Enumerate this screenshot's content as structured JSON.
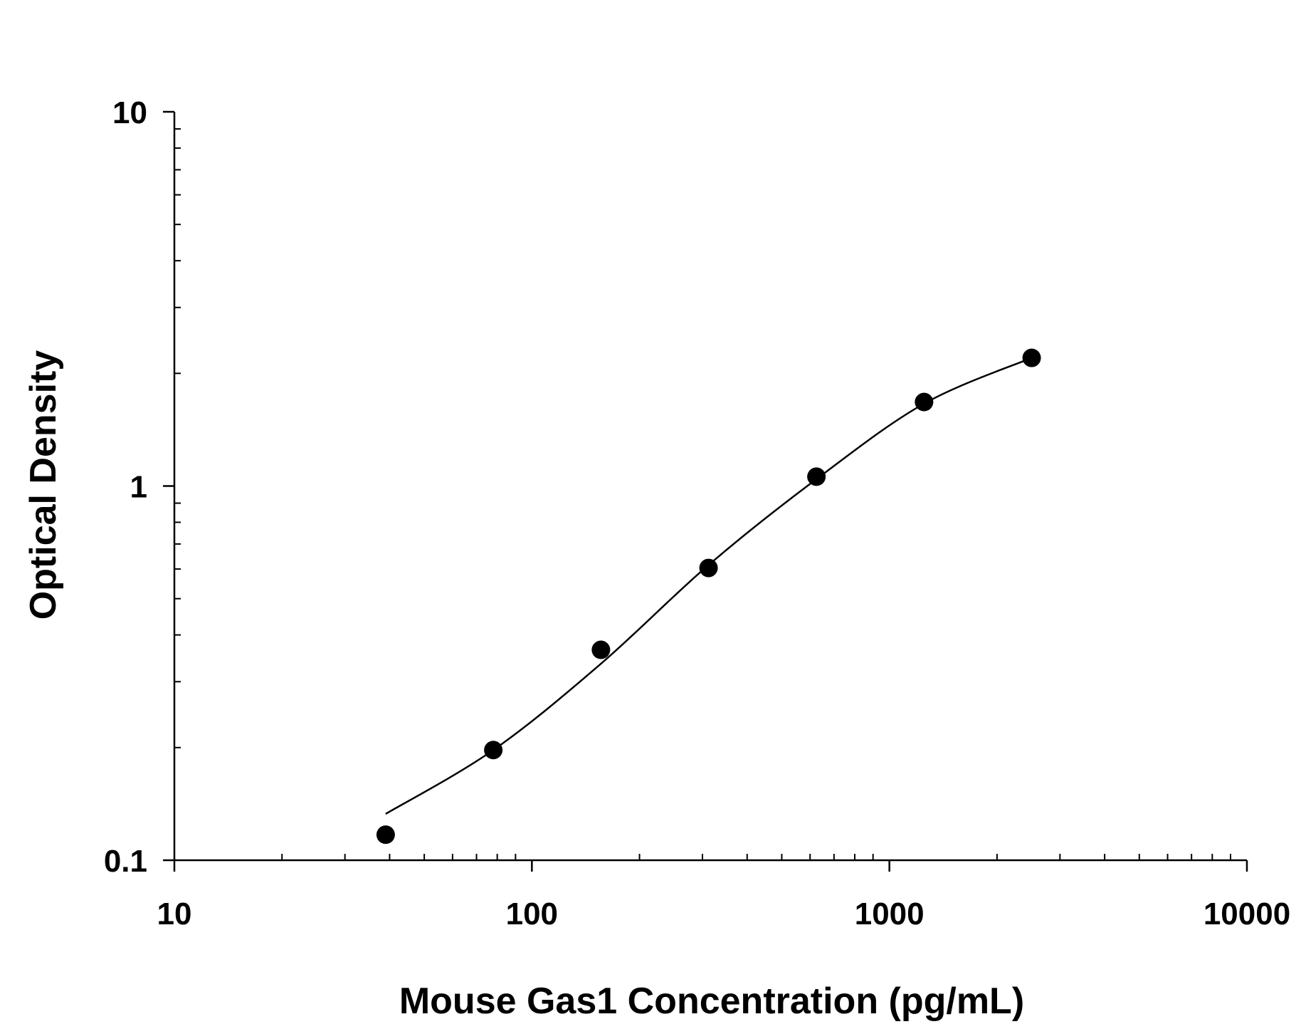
{
  "chart_data": {
    "type": "scatter",
    "title": "",
    "xlabel": "Mouse Gas1 Concentration (pg/mL)",
    "ylabel": "Optical Density",
    "x_scale": "log",
    "y_scale": "log",
    "xlim": [
      10,
      10000
    ],
    "ylim": [
      0.1,
      10
    ],
    "x_ticks": [
      {
        "value": 10,
        "label": "10"
      },
      {
        "value": 100,
        "label": "100"
      },
      {
        "value": 1000,
        "label": "1000"
      },
      {
        "value": 10000,
        "label": "10000"
      }
    ],
    "y_ticks": [
      {
        "value": 0.1,
        "label": "0.1"
      },
      {
        "value": 1,
        "label": "1"
      },
      {
        "value": 10,
        "label": "10"
      }
    ],
    "grid": false,
    "legend": "none",
    "series": [
      {
        "type": "scatter",
        "x": [
          39,
          78,
          156,
          312,
          625,
          1250,
          2500
        ],
        "y": [
          0.117,
          0.197,
          0.365,
          0.604,
          1.059,
          1.677,
          2.2
        ]
      },
      {
        "type": "line",
        "x": [
          39,
          78,
          156,
          312,
          625,
          1250,
          2500
        ],
        "y": [
          0.133,
          0.197,
          0.335,
          0.615,
          1.043,
          1.66,
          2.2
        ]
      }
    ],
    "colors": {
      "marker": "#000000",
      "line": "#000000",
      "axis": "#000000"
    }
  }
}
